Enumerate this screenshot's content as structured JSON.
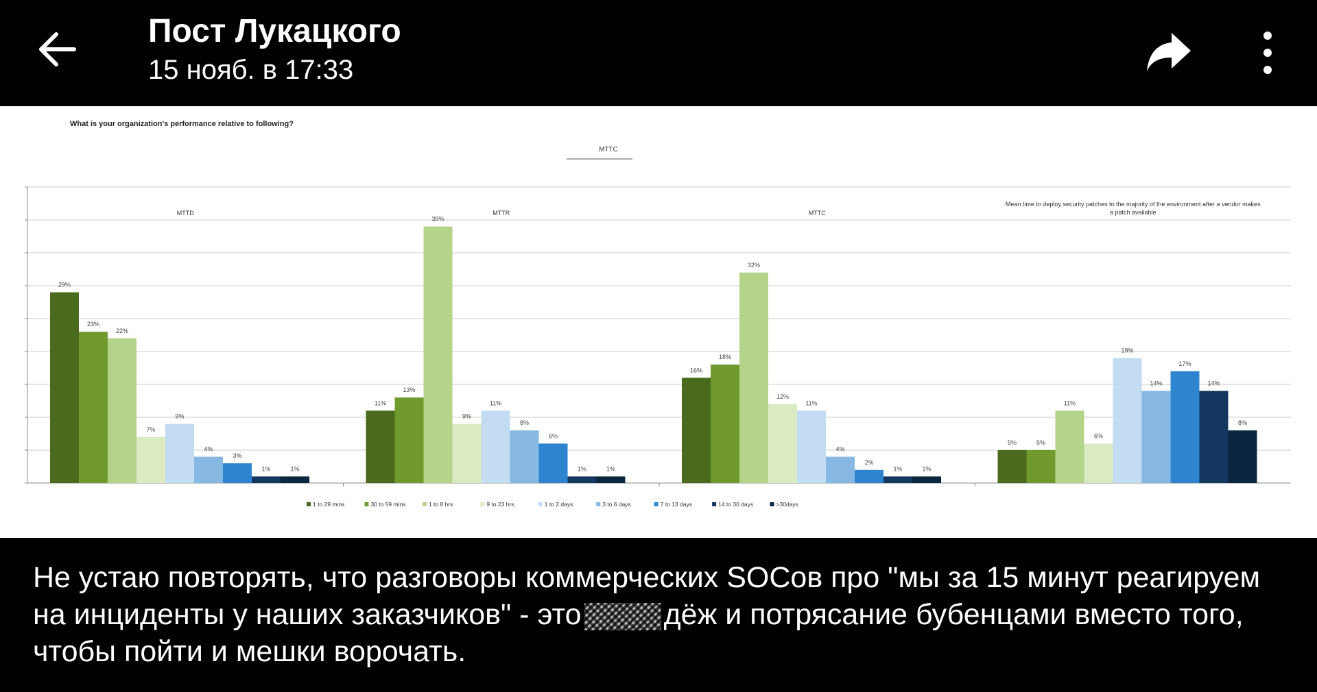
{
  "header": {
    "title": "Пост Лукацкого",
    "subtitle": "15 нояб. в 17:33",
    "icons": {
      "back": "arrow-left-icon",
      "share": "share-icon",
      "more": "more-vertical-icon"
    }
  },
  "chart_data": {
    "type": "bar",
    "title": "What is your organization's performance relative to following?",
    "subtitle": "MTTC",
    "groups": [
      "MTTD",
      "MTTR",
      "MTTC",
      "Mean time to deploy security patches to the majority of the environment after a vendor makes a patch available"
    ],
    "series": [
      {
        "name": "1 to 29 mins",
        "color": "#4a6b1e",
        "values": [
          29,
          11,
          16,
          5
        ]
      },
      {
        "name": "30 to 59 mins",
        "color": "#709a2e",
        "values": [
          23,
          13,
          18,
          5
        ]
      },
      {
        "name": "1 to 8 hrs",
        "color": "#b3d48a",
        "values": [
          22,
          39,
          32,
          11
        ]
      },
      {
        "name": "9 to 23 hrs",
        "color": "#daebc4",
        "values": [
          7,
          9,
          12,
          6
        ]
      },
      {
        "name": "1 to 2 days",
        "color": "#c3dcf2",
        "values": [
          9,
          11,
          11,
          19
        ]
      },
      {
        "name": "3 to 6 days",
        "color": "#86b8e3",
        "values": [
          4,
          8,
          4,
          14
        ]
      },
      {
        "name": "7 to 13 days",
        "color": "#2f84d0",
        "values": [
          3,
          6,
          2,
          17
        ]
      },
      {
        "name": "14 to 30 days",
        "color": "#15375f",
        "values": [
          1,
          1,
          1,
          14
        ]
      },
      {
        "name": ">30days",
        "color": "#0b2640",
        "values": [
          1,
          1,
          1,
          8
        ]
      }
    ],
    "ylim": [
      0,
      45
    ],
    "grid": true,
    "legend": "bottom",
    "value_suffix": "%"
  },
  "caption": {
    "before": "Не устаю повторять, что разговоры коммерческих SOCов про \"мы за 15 минут реагируем на инциденты у наших заказчиков\" - это",
    "after": "дёж и потрясание бубенцами вместо того, чтобы пойти и мешки ворочать."
  }
}
